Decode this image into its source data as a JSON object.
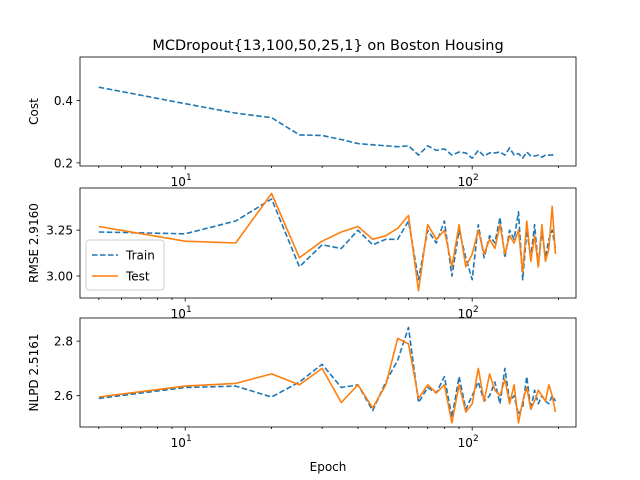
{
  "title": "MCDropout{13,100,50,25,1} on Boston Housing",
  "xlabel": "Epoch",
  "colors": {
    "train": "#1f77b4",
    "test": "#ff7f0e"
  },
  "chart_data": [
    {
      "type": "line",
      "ylabel": "Cost",
      "xscale": "log",
      "xlim": [
        4.3,
        230
      ],
      "ylim": [
        0.19,
        0.54
      ],
      "yticks": [
        0.2,
        0.4
      ],
      "ytick_labels": [
        "0.2",
        "0.4"
      ],
      "xtick_labels": [
        "10^1",
        "10^2"
      ],
      "series": [
        {
          "key": "train",
          "style": "dashed",
          "x": [
            5,
            10,
            15,
            20,
            25,
            30,
            35,
            40,
            45,
            50,
            55,
            60,
            65,
            70,
            75,
            80,
            85,
            90,
            95,
            100,
            105,
            110,
            115,
            120,
            125,
            130,
            135,
            140,
            145,
            150,
            155,
            160,
            165,
            170,
            175,
            180,
            185,
            190,
            195
          ],
          "y": [
            0.443,
            0.39,
            0.36,
            0.345,
            0.29,
            0.288,
            0.275,
            0.262,
            0.258,
            0.255,
            0.252,
            0.255,
            0.225,
            0.255,
            0.24,
            0.245,
            0.225,
            0.235,
            0.232,
            0.215,
            0.24,
            0.222,
            0.232,
            0.232,
            0.235,
            0.225,
            0.248,
            0.225,
            0.23,
            0.215,
            0.235,
            0.222,
            0.222,
            0.225,
            0.218,
            0.225,
            0.225,
            0.225,
            0.23
          ]
        }
      ]
    },
    {
      "type": "line",
      "ylabel": "RMSE 2.9160",
      "xscale": "log",
      "xlim": [
        4.3,
        230
      ],
      "ylim": [
        2.88,
        3.48
      ],
      "yticks": [
        3.0,
        3.25
      ],
      "ytick_labels": [
        "3.00",
        "3.25"
      ],
      "xtick_labels": [
        "10^1",
        "10^2"
      ],
      "legend": {
        "position": "lower-left",
        "entries": [
          "Train",
          "Test"
        ]
      },
      "series": [
        {
          "key": "train",
          "name": "Train",
          "style": "dashed",
          "x": [
            5,
            10,
            15,
            20,
            25,
            30,
            35,
            40,
            45,
            50,
            55,
            60,
            65,
            70,
            75,
            80,
            85,
            90,
            95,
            100,
            105,
            110,
            115,
            120,
            125,
            130,
            135,
            140,
            145,
            150,
            155,
            160,
            165,
            170,
            175,
            180,
            185,
            190,
            195
          ],
          "y": [
            3.24,
            3.23,
            3.3,
            3.42,
            3.05,
            3.17,
            3.15,
            3.25,
            3.17,
            3.2,
            3.2,
            3.3,
            2.98,
            3.25,
            3.18,
            3.3,
            3.0,
            3.25,
            3.1,
            2.98,
            3.28,
            3.1,
            3.22,
            3.18,
            3.32,
            3.1,
            3.25,
            3.2,
            3.35,
            2.98,
            3.25,
            3.1,
            3.28,
            3.05,
            3.25,
            3.1,
            3.2,
            3.25,
            3.15
          ]
        },
        {
          "key": "test",
          "name": "Test",
          "style": "solid",
          "x": [
            5,
            10,
            15,
            20,
            25,
            30,
            35,
            40,
            45,
            50,
            55,
            60,
            65,
            70,
            75,
            80,
            85,
            90,
            95,
            100,
            105,
            110,
            115,
            120,
            125,
            130,
            135,
            140,
            145,
            150,
            155,
            160,
            165,
            170,
            175,
            180,
            185,
            190,
            195
          ],
          "y": [
            3.27,
            3.19,
            3.18,
            3.45,
            3.1,
            3.19,
            3.24,
            3.27,
            3.2,
            3.22,
            3.26,
            3.33,
            2.92,
            3.28,
            3.2,
            3.25,
            3.05,
            3.28,
            3.05,
            3.12,
            3.25,
            3.12,
            3.2,
            3.15,
            3.28,
            3.12,
            3.22,
            3.18,
            3.25,
            3.02,
            3.3,
            3.08,
            3.22,
            3.05,
            3.28,
            3.08,
            3.15,
            3.38,
            3.12
          ]
        }
      ]
    },
    {
      "type": "line",
      "ylabel": "NLPD 2.5161",
      "xscale": "log",
      "xlim": [
        4.3,
        230
      ],
      "ylim": [
        2.485,
        2.885
      ],
      "yticks": [
        2.6,
        2.8
      ],
      "ytick_labels": [
        "2.6",
        "2.8"
      ],
      "xtick_labels": [
        "10^1",
        "10^2"
      ],
      "series": [
        {
          "key": "train",
          "name": "Train",
          "style": "dashed",
          "x": [
            5,
            10,
            15,
            20,
            25,
            30,
            35,
            40,
            45,
            50,
            55,
            60,
            65,
            70,
            75,
            80,
            85,
            90,
            95,
            100,
            105,
            110,
            115,
            120,
            125,
            130,
            135,
            140,
            145,
            150,
            155,
            160,
            165,
            170,
            175,
            180,
            185,
            190,
            195
          ],
          "y": [
            2.59,
            2.63,
            2.635,
            2.595,
            2.65,
            2.715,
            2.63,
            2.64,
            2.545,
            2.65,
            2.73,
            2.85,
            2.575,
            2.63,
            2.61,
            2.67,
            2.52,
            2.67,
            2.55,
            2.6,
            2.65,
            2.58,
            2.6,
            2.65,
            2.57,
            2.7,
            2.58,
            2.6,
            2.53,
            2.56,
            2.67,
            2.55,
            2.62,
            2.57,
            2.6,
            2.58,
            2.57,
            2.6,
            2.58
          ]
        },
        {
          "key": "test",
          "name": "Test",
          "style": "solid",
          "x": [
            5,
            10,
            15,
            20,
            25,
            30,
            35,
            40,
            45,
            50,
            55,
            60,
            65,
            70,
            75,
            80,
            85,
            90,
            95,
            100,
            105,
            110,
            115,
            120,
            125,
            130,
            135,
            140,
            145,
            150,
            155,
            160,
            165,
            170,
            175,
            180,
            185,
            190,
            195
          ],
          "y": [
            2.595,
            2.635,
            2.645,
            2.68,
            2.64,
            2.7,
            2.575,
            2.64,
            2.555,
            2.64,
            2.81,
            2.79,
            2.59,
            2.64,
            2.61,
            2.64,
            2.5,
            2.64,
            2.54,
            2.57,
            2.7,
            2.58,
            2.68,
            2.62,
            2.6,
            2.66,
            2.57,
            2.64,
            2.5,
            2.58,
            2.63,
            2.55,
            2.58,
            2.62,
            2.6,
            2.58,
            2.64,
            2.6,
            2.54
          ]
        }
      ]
    }
  ]
}
